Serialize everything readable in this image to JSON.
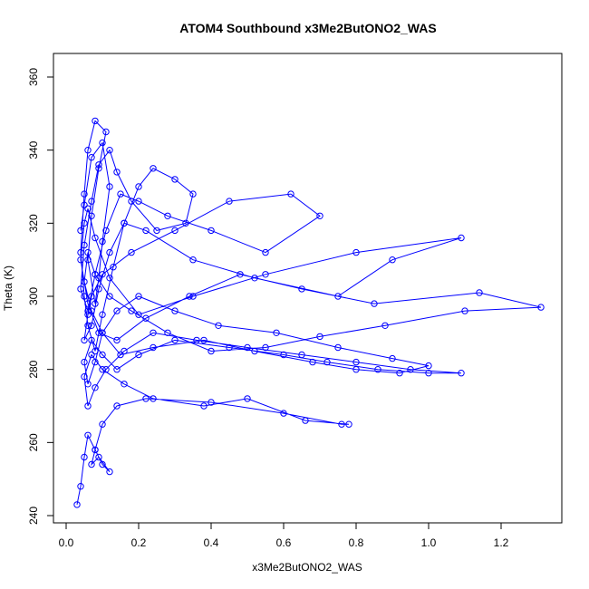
{
  "chart_data": {
    "type": "line",
    "title": "ATOM4 Southbound x3Me2ButONO2_WAS",
    "xlabel": "x3Me2ButONO2_WAS",
    "ylabel": "Theta (K)",
    "xlim": [
      0,
      1.35
    ],
    "ylim": [
      240,
      360
    ],
    "xticks": [
      0.0,
      0.2,
      0.4,
      0.6,
      0.8,
      1.0,
      1.2
    ],
    "xtick_labels": [
      "0.0",
      "0.2",
      "0.4",
      "0.6",
      "0.8",
      "1.0",
      "1.2"
    ],
    "yticks": [
      240,
      260,
      280,
      300,
      320,
      340,
      360
    ],
    "ytick_labels": [
      "240",
      "260",
      "280",
      "300",
      "320",
      "340",
      "360"
    ],
    "grid": false,
    "series_color": "#0000ff",
    "marker": "open-circle",
    "series": [
      {
        "x": [
          0.04,
          0.05,
          0.07,
          0.1,
          0.12,
          0.1,
          0.09,
          0.08,
          0.06,
          0.07,
          0.09,
          0.11,
          0.08,
          0.06,
          0.05,
          0.04,
          0.05,
          0.06,
          0.08,
          0.1,
          0.13,
          0.16,
          0.2,
          0.24,
          0.3,
          0.35,
          0.33,
          0.25,
          0.18,
          0.14,
          0.12,
          0.09,
          0.07,
          0.05,
          0.04,
          0.06,
          0.08,
          0.11,
          0.15,
          0.2,
          0.28,
          0.4,
          0.55,
          0.7,
          0.62,
          0.45,
          0.3,
          0.18,
          0.1,
          0.07,
          0.06,
          0.05,
          0.07,
          0.09,
          0.12,
          0.16,
          0.22,
          0.35,
          0.52,
          0.75,
          0.9,
          1.09,
          0.8,
          0.55,
          0.35,
          0.2,
          0.12,
          0.08,
          0.06,
          0.05,
          0.04,
          0.06,
          0.09,
          0.14,
          0.22,
          0.34,
          0.48,
          0.65,
          0.85,
          1.14,
          1.31,
          1.1,
          0.88,
          0.7,
          0.55,
          0.4,
          0.28,
          0.18,
          0.12,
          0.08,
          0.06,
          0.05,
          0.07,
          0.1,
          0.15,
          0.24,
          0.38,
          0.52,
          0.68,
          0.8,
          0.92,
          1.0,
          0.9,
          0.75,
          0.58,
          0.42,
          0.3,
          0.2,
          0.14,
          0.1,
          0.08,
          0.06,
          0.05,
          0.07,
          0.1,
          0.14,
          0.2,
          0.3,
          0.45,
          0.6,
          0.72,
          0.86,
          1.0,
          1.09,
          0.95,
          0.8,
          0.65,
          0.5,
          0.36,
          0.24,
          0.16,
          0.11,
          0.08,
          0.06,
          0.05,
          0.07,
          0.1,
          0.16,
          0.24,
          0.38,
          0.5,
          0.66,
          0.78,
          0.76,
          0.6,
          0.4,
          0.22,
          0.14,
          0.1,
          0.08,
          0.07,
          0.09,
          0.12,
          0.1,
          0.08,
          0.06,
          0.05,
          0.04,
          0.03
        ],
        "y": [
          318,
          325,
          338,
          342,
          330,
          315,
          305,
          298,
          310,
          322,
          335,
          345,
          348,
          340,
          328,
          312,
          300,
          292,
          285,
          295,
          308,
          320,
          330,
          335,
          332,
          328,
          320,
          318,
          326,
          334,
          340,
          336,
          326,
          314,
          302,
          296,
          306,
          318,
          328,
          326,
          322,
          318,
          312,
          322,
          328,
          326,
          318,
          312,
          306,
          300,
          295,
          288,
          292,
          302,
          312,
          320,
          318,
          310,
          305,
          300,
          310,
          316,
          312,
          306,
          300,
          295,
          305,
          316,
          324,
          320,
          310,
          298,
          290,
          288,
          294,
          300,
          306,
          302,
          298,
          301,
          297,
          296,
          292,
          289,
          286,
          285,
          290,
          296,
          300,
          306,
          312,
          304,
          296,
          290,
          284,
          286,
          288,
          285,
          282,
          280,
          279,
          281,
          283,
          286,
          290,
          292,
          296,
          300,
          296,
          290,
          282,
          276,
          282,
          288,
          284,
          280,
          284,
          288,
          286,
          284,
          282,
          280,
          279,
          279,
          280,
          282,
          284,
          286,
          288,
          290,
          285,
          280,
          275,
          270,
          278,
          284,
          280,
          276,
          272,
          270,
          272,
          266,
          265,
          265,
          268,
          271,
          272,
          270,
          265,
          258,
          254,
          256,
          252,
          254,
          258,
          262,
          256,
          248,
          243
        ]
      }
    ]
  }
}
